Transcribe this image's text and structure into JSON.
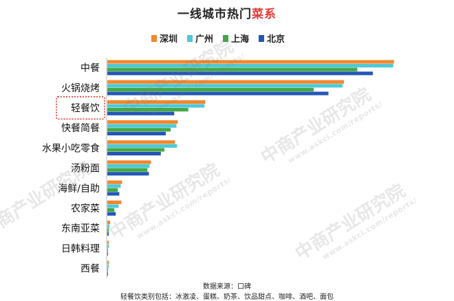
{
  "chart_data": {
    "type": "bar",
    "orientation": "horizontal",
    "title": "一线城市热门",
    "title_accent": "菜系",
    "categories": [
      "中餐",
      "火锅烧烤",
      "轻餐饮",
      "快餐简餐",
      "水果小吃零食",
      "汤粉面",
      "海鲜/自助",
      "农家菜",
      "东南亚菜",
      "日韩料理",
      "西餐"
    ],
    "highlight_category": "轻餐饮",
    "series": [
      {
        "name": "深圳",
        "color": "#f0882f",
        "values": [
          407,
          336,
          139,
          100,
          96,
          62,
          21,
          20,
          4,
          2,
          2
        ]
      },
      {
        "name": "广州",
        "color": "#4fc9d6",
        "values": [
          406,
          334,
          138,
          98,
          99,
          60,
          19,
          16,
          3,
          2,
          2
        ]
      },
      {
        "name": "上海",
        "color": "#43a845",
        "values": [
          355,
          293,
          115,
          90,
          81,
          57,
          15,
          10,
          2,
          1,
          1
        ]
      },
      {
        "name": "北京",
        "color": "#2457b5",
        "values": [
          377,
          314,
          95,
          83,
          76,
          59,
          17,
          12,
          2,
          1,
          1
        ]
      }
    ],
    "xlim": [
      0,
      420
    ],
    "grid": false,
    "legend_position": "top"
  },
  "footer": {
    "source": "数据来源：口碑",
    "note": "轻餐饮类别包括：冰激凌、蛋糕、奶茶、饮品甜点、咖啡、酒吧、面包"
  },
  "watermark": {
    "brand": "中商产业研究院",
    "url": "www.askci.com/reports/"
  }
}
